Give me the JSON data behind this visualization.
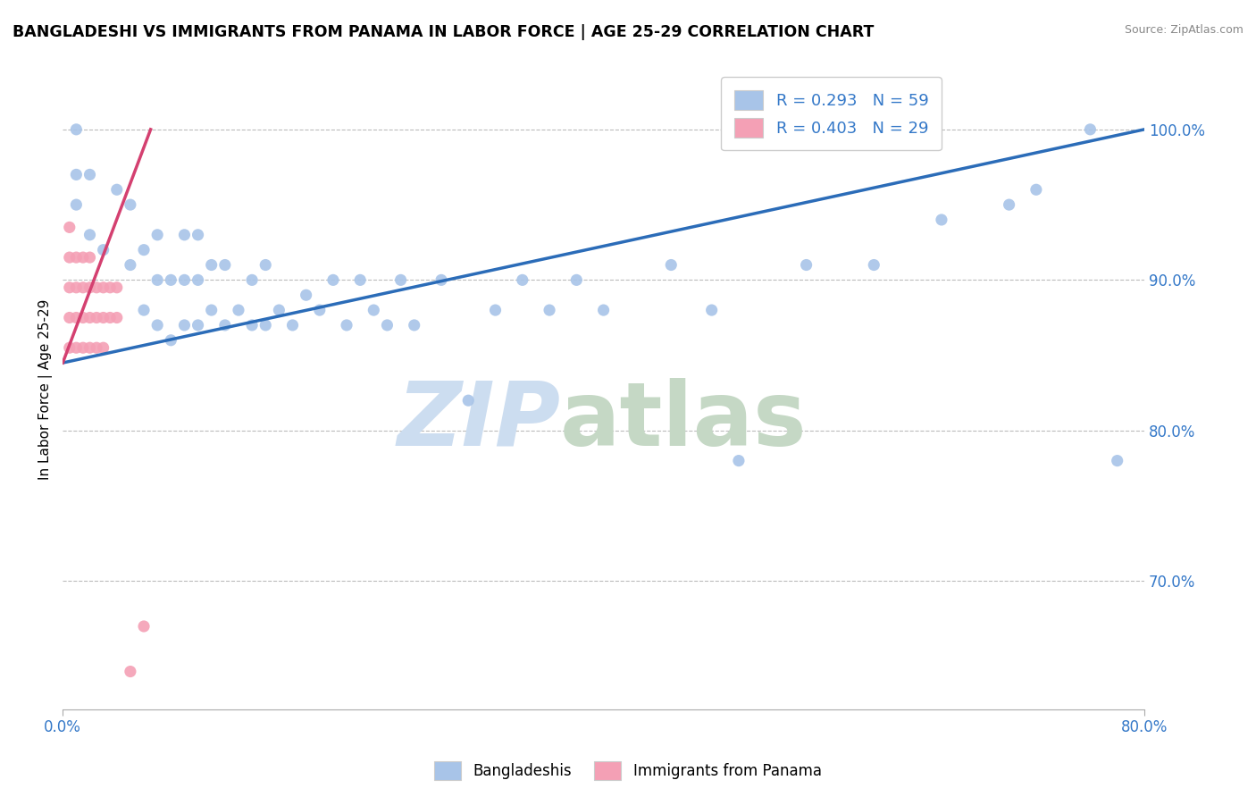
{
  "title": "BANGLADESHI VS IMMIGRANTS FROM PANAMA IN LABOR FORCE | AGE 25-29 CORRELATION CHART",
  "source": "Source: ZipAtlas.com",
  "ylabel_label": "In Labor Force | Age 25-29",
  "right_yticks": [
    "70.0%",
    "80.0%",
    "90.0%",
    "100.0%"
  ],
  "right_ytick_vals": [
    0.7,
    0.8,
    0.9,
    1.0
  ],
  "xlim": [
    0.0,
    0.8
  ],
  "ylim": [
    0.615,
    1.04
  ],
  "blue_color": "#a8c4e8",
  "pink_color": "#f4a0b5",
  "blue_line_color": "#2b6cb8",
  "pink_line_color": "#d44070",
  "legend_blue_label": "R = 0.293   N = 59",
  "legend_pink_label": "R = 0.403   N = 29",
  "blue_scatter_x": [
    0.01,
    0.01,
    0.01,
    0.02,
    0.02,
    0.03,
    0.04,
    0.05,
    0.05,
    0.06,
    0.06,
    0.07,
    0.07,
    0.07,
    0.08,
    0.08,
    0.09,
    0.09,
    0.09,
    0.1,
    0.1,
    0.1,
    0.11,
    0.11,
    0.12,
    0.12,
    0.13,
    0.14,
    0.14,
    0.15,
    0.15,
    0.16,
    0.17,
    0.18,
    0.19,
    0.2,
    0.21,
    0.22,
    0.23,
    0.24,
    0.25,
    0.26,
    0.28,
    0.3,
    0.32,
    0.34,
    0.36,
    0.38,
    0.4,
    0.45,
    0.48,
    0.5,
    0.55,
    0.6,
    0.65,
    0.7,
    0.72,
    0.76,
    0.78
  ],
  "blue_scatter_y": [
    0.95,
    0.97,
    1.0,
    0.93,
    0.97,
    0.92,
    0.96,
    0.91,
    0.95,
    0.88,
    0.92,
    0.87,
    0.9,
    0.93,
    0.86,
    0.9,
    0.87,
    0.9,
    0.93,
    0.87,
    0.9,
    0.93,
    0.88,
    0.91,
    0.87,
    0.91,
    0.88,
    0.87,
    0.9,
    0.87,
    0.91,
    0.88,
    0.87,
    0.89,
    0.88,
    0.9,
    0.87,
    0.9,
    0.88,
    0.87,
    0.9,
    0.87,
    0.9,
    0.82,
    0.88,
    0.9,
    0.88,
    0.9,
    0.88,
    0.91,
    0.88,
    0.78,
    0.91,
    0.91,
    0.94,
    0.95,
    0.96,
    1.0,
    0.78
  ],
  "pink_scatter_x": [
    0.005,
    0.005,
    0.005,
    0.005,
    0.005,
    0.01,
    0.01,
    0.01,
    0.01,
    0.015,
    0.015,
    0.015,
    0.015,
    0.02,
    0.02,
    0.02,
    0.02,
    0.025,
    0.025,
    0.025,
    0.03,
    0.03,
    0.03,
    0.035,
    0.035,
    0.04,
    0.04,
    0.05,
    0.06
  ],
  "pink_scatter_y": [
    0.855,
    0.875,
    0.895,
    0.915,
    0.935,
    0.855,
    0.875,
    0.895,
    0.915,
    0.855,
    0.875,
    0.895,
    0.915,
    0.855,
    0.875,
    0.895,
    0.915,
    0.855,
    0.875,
    0.895,
    0.855,
    0.875,
    0.895,
    0.875,
    0.895,
    0.875,
    0.895,
    0.64,
    0.67
  ],
  "blue_trend_x": [
    0.0,
    0.8
  ],
  "blue_trend_y": [
    0.845,
    1.0
  ],
  "pink_trend_x": [
    0.0,
    0.065
  ],
  "pink_trend_y": [
    0.845,
    1.0
  ]
}
